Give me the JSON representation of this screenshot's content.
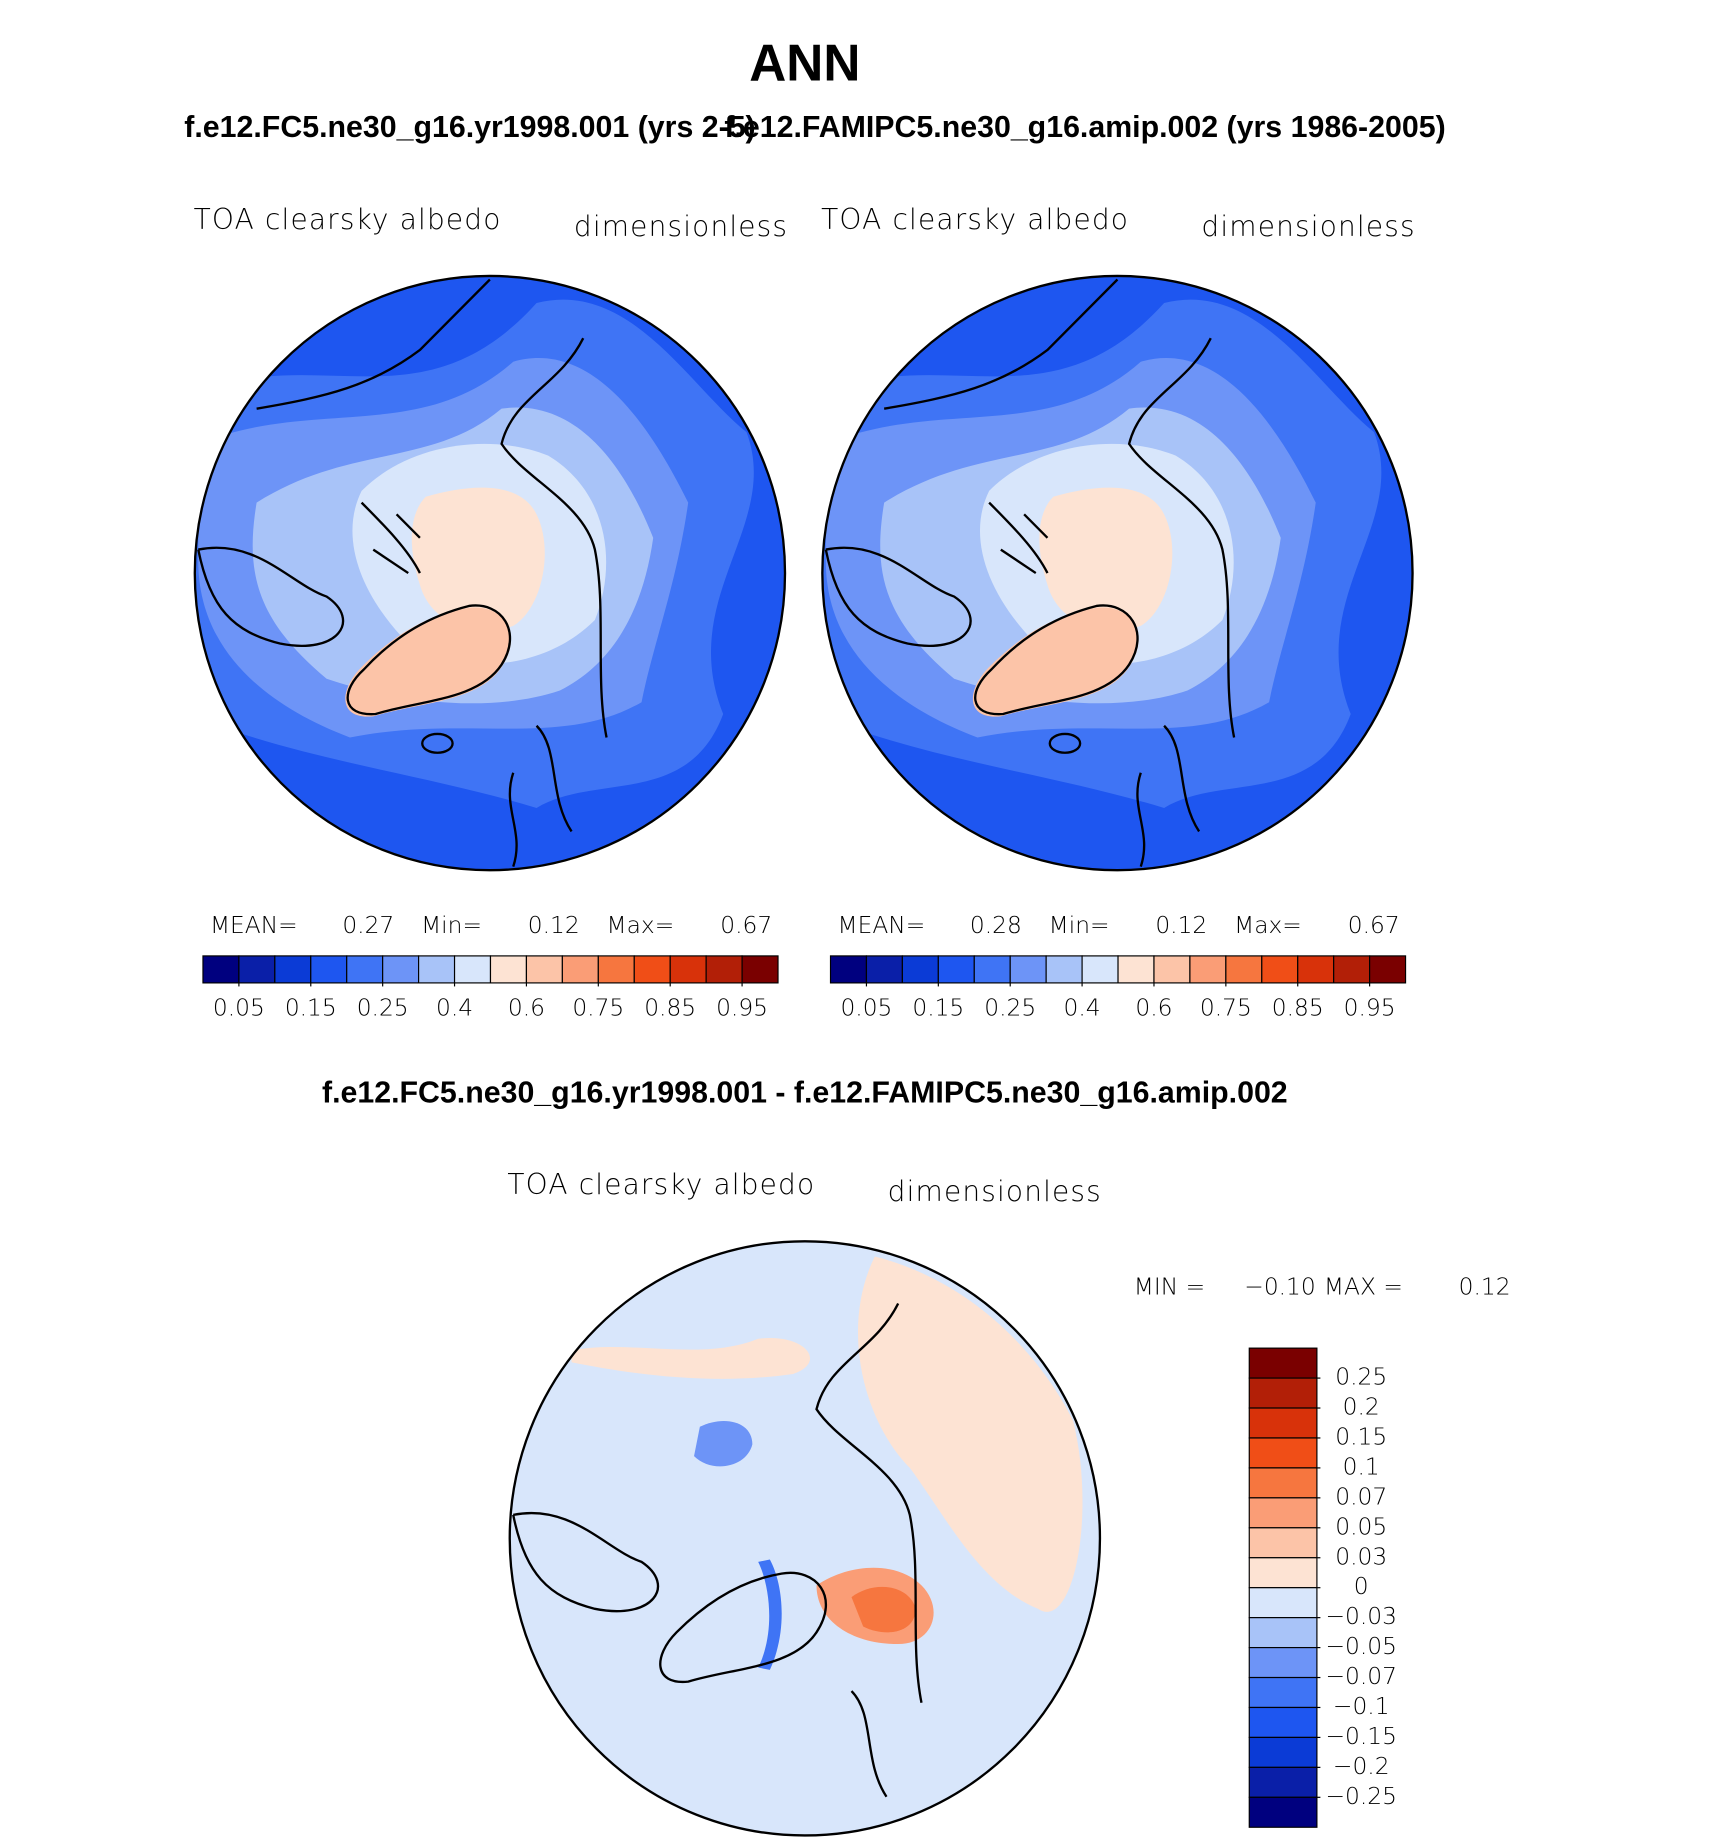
{
  "title": "ANN",
  "top_colorbar": {
    "colors": [
      "#00007f",
      "#0a1fa8",
      "#0b3bd6",
      "#1e56f0",
      "#3f74f5",
      "#6d94f7",
      "#a8c3f8",
      "#d8e6fb",
      "#fde3d3",
      "#fcc4a8",
      "#fa9d76",
      "#f6763f",
      "#f04e17",
      "#d8320a",
      "#b21f07",
      "#7a0000"
    ],
    "ticks": [
      0.05,
      0.15,
      0.25,
      0.4,
      0.6,
      0.75,
      0.85,
      0.95
    ]
  },
  "panels": [
    {
      "case": "f.e12.FC5.ne30_g16.yr1998.001 (yrs 2-5)",
      "variable": "TOA clearsky albedo",
      "units": "dimensionless",
      "stats": [
        {
          "label": "MEAN=",
          "value": 0.27
        },
        {
          "label": "Min=",
          "value": 0.12
        },
        {
          "label": "Max=",
          "value": 0.67
        }
      ]
    },
    {
      "case": "f.e12.FAMIPC5.ne30_g16.amip.002 (yrs 1986-2005)",
      "variable": "TOA clearsky albedo",
      "units": "dimensionless",
      "stats": [
        {
          "label": "MEAN=",
          "value": 0.28
        },
        {
          "label": "Min=",
          "value": 0.12
        },
        {
          "label": "Max=",
          "value": 0.67
        }
      ]
    }
  ],
  "difference": {
    "case": "f.e12.FC5.ne30_g16.yr1998.001 - f.e12.FAMIPC5.ne30_g16.amip.002",
    "variable": "TOA clearsky albedo",
    "units": "dimensionless",
    "stats": [
      {
        "label": "MIN =",
        "value": {
          "value": -0.1,
          "label": "−0.10"
        }
      },
      {
        "label": "MAX =",
        "value": 0.12
      }
    ],
    "colorbar": {
      "colors": [
        "#7a0000",
        "#b21f07",
        "#d8320a",
        "#f04e17",
        "#f6763f",
        "#fa9d76",
        "#fcc4a8",
        "#fde3d3",
        "#d8e6fb",
        "#a8c3f8",
        "#6d94f7",
        "#3f74f5",
        "#1e56f0",
        "#0b3bd6",
        "#0a1fa8",
        "#00007f"
      ],
      "ticks": [
        0.25,
        0.2,
        0.15,
        0.1,
        0.07,
        0.05,
        0.03,
        0,
        {
          "value": -0.03,
          "label": "−0.03"
        },
        {
          "value": -0.05,
          "label": "−0.05"
        },
        {
          "value": -0.07,
          "label": "−0.07"
        },
        {
          "value": -0.1,
          "label": "−0.1"
        },
        {
          "value": -0.15,
          "label": "−0.15"
        },
        {
          "value": -0.2,
          "label": "−0.2"
        },
        {
          "value": -0.25,
          "label": "−0.25"
        }
      ]
    }
  }
}
